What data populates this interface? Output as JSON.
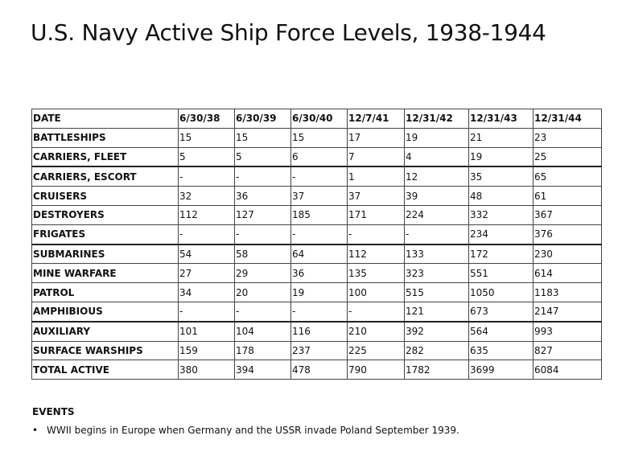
{
  "title": "U.S. Navy Active Ship Force Levels, 1938-1944",
  "table": {
    "header": [
      "DATE",
      "6/30/38",
      "6/30/39",
      "6/30/40",
      "12/7/41",
      "12/31/42",
      "12/31/43",
      "12/31/44"
    ],
    "rows": [
      [
        "BATTLESHIPS",
        "15",
        "15",
        "15",
        "17",
        "19",
        "21",
        "23"
      ],
      [
        "CARRIERS, FLEET",
        "5",
        "5",
        "6",
        "7",
        "4",
        "19",
        "25"
      ],
      [
        "CARRIERS, ESCORT",
        "-",
        "-",
        "-",
        "1",
        "12",
        "35",
        "65"
      ],
      [
        "CRUISERS",
        "32",
        "36",
        "37",
        "37",
        "39",
        "48",
        "61"
      ],
      [
        "DESTROYERS",
        "112",
        "127",
        "185",
        "171",
        "224",
        "332",
        "367"
      ],
      [
        "FRIGATES",
        "-",
        "-",
        "-",
        "-",
        "-",
        "234",
        "376"
      ],
      [
        "SUBMARINES",
        "54",
        "58",
        "64",
        "112",
        "133",
        "172",
        "230"
      ],
      [
        "MINE WARFARE",
        "27",
        "29",
        "36",
        "135",
        "323",
        "551",
        "614"
      ],
      [
        "PATROL",
        "34",
        "20",
        "19",
        "100",
        "515",
        "1050",
        "1183"
      ],
      [
        "AMPHIBIOUS",
        "-",
        "-",
        "-",
        "-",
        "121",
        "673",
        "2147"
      ],
      [
        "AUXILIARY",
        "101",
        "104",
        "116",
        "210",
        "392",
        "564",
        "993"
      ],
      [
        "SURFACE WARSHIPS",
        "159",
        "178",
        "237",
        "225",
        "282",
        "635",
        "827"
      ],
      [
        "TOTAL ACTIVE",
        "380",
        "394",
        "478",
        "790",
        "1782",
        "3699",
        "6084"
      ]
    ]
  },
  "events": {
    "heading": "EVENTS",
    "bullet": "•",
    "items": [
      "WWII begins in Europe when Germany and the USSR invade Poland September 1939."
    ]
  }
}
